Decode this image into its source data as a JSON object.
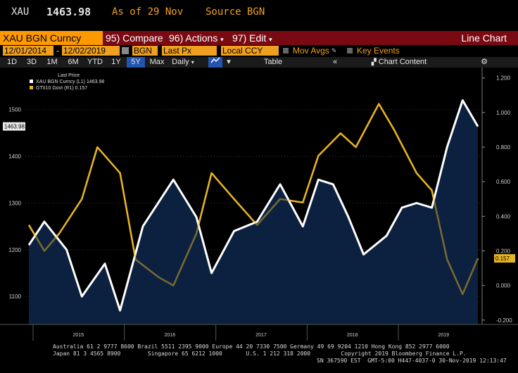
{
  "header": {
    "ticker": "XAU",
    "price": "1463.98",
    "as_of": "As of 29 Nov",
    "source": "Source BGN"
  },
  "toolbar": {
    "security": "XAU BGN Curncy",
    "compare": "95) Compare",
    "actions": "96) Actions",
    "edit": "97) Edit",
    "chart_type": "Line Chart"
  },
  "settings": {
    "start_date": "12/01/2014",
    "end_date": "12/02/2019",
    "source": "BGN",
    "field": "Last Px",
    "currency": "Local CCY",
    "mov_avgs": "Mov Avgs",
    "key_events": "Key Events"
  },
  "periods": {
    "items": [
      "1D",
      "3D",
      "1M",
      "6M",
      "YTD",
      "1Y",
      "5Y",
      "Max",
      "Daily"
    ],
    "selected": "5Y",
    "table": "Table",
    "chart_content": "Chart Content"
  },
  "colors": {
    "xau": "#ffffff",
    "gt10": "#e6b423",
    "fill": "#0d2444",
    "toolbar": "#7a0a12",
    "field": "#f0a020"
  },
  "chart_data": {
    "type": "line",
    "legend_title": "Last Price",
    "series": [
      {
        "name": "XAU BGN Curncy  (L1) 1463.98",
        "axis": "left",
        "color": "#ffffff",
        "x": [
          "2014-12",
          "2015-02",
          "2015-05",
          "2015-07",
          "2015-10",
          "2015-12",
          "2016-03",
          "2016-07",
          "2016-10",
          "2016-12",
          "2017-03",
          "2017-06",
          "2017-09",
          "2017-12",
          "2018-02",
          "2018-04",
          "2018-06",
          "2018-08",
          "2018-11",
          "2019-01",
          "2019-03",
          "2019-05",
          "2019-07",
          "2019-09",
          "2019-11"
        ],
        "values": [
          1210,
          1260,
          1200,
          1100,
          1170,
          1070,
          1250,
          1350,
          1270,
          1150,
          1240,
          1260,
          1340,
          1250,
          1350,
          1340,
          1270,
          1190,
          1230,
          1290,
          1300,
          1290,
          1420,
          1520,
          1463.98
        ]
      },
      {
        "name": "GTII10 Govt  (R1)  0.157",
        "axis": "right",
        "color": "#e6b423",
        "x": [
          "2014-12",
          "2015-02",
          "2015-04",
          "2015-07",
          "2015-09",
          "2015-12",
          "2016-02",
          "2016-05",
          "2016-07",
          "2016-10",
          "2016-12",
          "2017-03",
          "2017-06",
          "2017-09",
          "2017-12",
          "2018-02",
          "2018-05",
          "2018-07",
          "2018-10",
          "2018-12",
          "2019-03",
          "2019-05",
          "2019-07",
          "2019-09",
          "2019-11"
        ],
        "values": [
          0.35,
          0.2,
          0.3,
          0.5,
          0.8,
          0.65,
          0.15,
          0.05,
          0.0,
          0.3,
          0.65,
          0.5,
          0.35,
          0.5,
          0.48,
          0.75,
          0.88,
          0.8,
          1.05,
          0.9,
          0.65,
          0.55,
          0.15,
          -0.05,
          0.157
        ]
      }
    ],
    "left_axis": {
      "ticks": [
        1100,
        1200,
        1300,
        1400,
        1500
      ],
      "ylim": [
        1040,
        1590
      ],
      "last_label": "1463.98"
    },
    "right_axis": {
      "ticks": [
        "1.200",
        "1.000",
        "0.800",
        "0.600",
        "0.400",
        "0.200",
        "0.000",
        "-0.200"
      ],
      "ylim": [
        -0.225,
        1.26
      ],
      "last_label": "0.157"
    },
    "x_axis": {
      "labels": [
        "2015",
        "2016",
        "2017",
        "2018",
        "2019"
      ],
      "start": "2014-12-01",
      "end": "2019-12-02"
    }
  },
  "footer": {
    "line1": "Australia 61 2 9777 8600 Brazil 5511 2395 9000 Europe 44 20 7330 7500 Germany 49 69 9204 1210 Hong Kong 852 2977 6000",
    "line2": "Japan 81 3 4565 8900        Singapore 65 6212 1000       U.S. 1 212 318 2000         Copyright 2019 Bloomberg Finance L.P.",
    "line3": "SN 367590 EST  GMT-5:00 H447-4037-0 30-Nov-2019 12:13:47"
  }
}
